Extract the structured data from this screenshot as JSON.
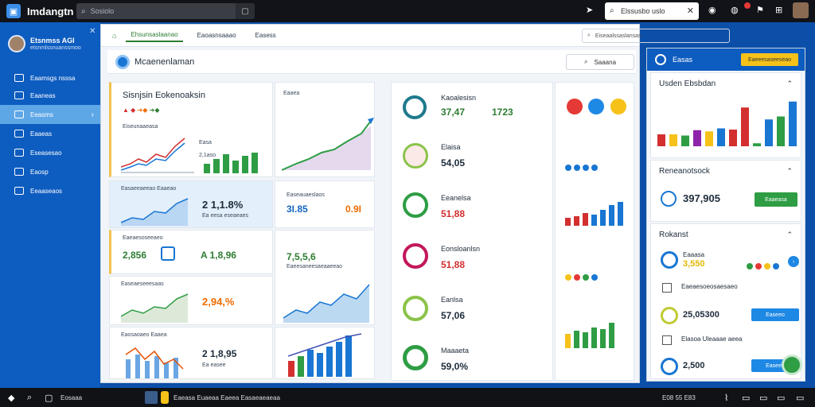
{
  "topbar": {
    "app_title": "Imdangtn",
    "search_text": "Sosiolo",
    "search_box_text": "Elssusbo uslo",
    "icons": [
      "app-logo-icon",
      "search-icon",
      "filter-icon",
      "send-icon",
      "search-icon",
      "close-icon",
      "settings-icon",
      "bell-icon",
      "flag-icon",
      "grid-icon"
    ]
  },
  "sidebar": {
    "profile_name": "Etsnmss AGI",
    "profile_sub": "etsnmlssnuanssmoo",
    "items": [
      {
        "label": "Eaamsgs nsssa"
      },
      {
        "label": "Eaaneas"
      },
      {
        "label": "Eeasms"
      },
      {
        "label": "Eaaeas"
      },
      {
        "label": "Eseasesao"
      },
      {
        "label": "Eaosp"
      },
      {
        "label": "Eeaaseaos"
      }
    ]
  },
  "window": {
    "tabs": [
      "Ehsunsaslaanao",
      "Eaoasnsaaao",
      "Easess"
    ],
    "search_text": "Eiseaalssaslansas",
    "header_title": "Mcaenenlaman",
    "header_button": "Saaana"
  },
  "cards": {
    "c1_title": "Sisnjsin Eokenoaksin",
    "c1_sub": "Eiseunaaeasa",
    "c1_chart_label": "Eaaeeaeeoao",
    "c1_values": [
      "Easa",
      "2,1aso",
      "Eaasio"
    ],
    "c2_label": "Eaaea",
    "c3_label": "Easaeeaeeao Eaaeao",
    "c3_value": "2 1,1.8%",
    "c3_sub": "Ea eesa eseaeaes",
    "c4_label": "Easeauaeslaos",
    "c4_value": "3I.85",
    "c4_value2": "0.9I",
    "c5_label": "Eaeaesoseeaeo",
    "c5_value": "2,856",
    "c5_value2": "A 1,8,96",
    "c6_value": "7,5,5,6",
    "c6_label": "Eaeesaneesaeaaeeao",
    "c7_label": "Easeaeseeesaas",
    "c7_value": "2,94,%",
    "c8_label": "Eaosaoaeo Eaaea",
    "c8_value": "2 1,8,95",
    "c8_sub": "Ea easee"
  },
  "list": [
    {
      "title": "Kaoalesisn",
      "value": "37,47",
      "value_color": "#2e7d32"
    },
    {
      "title": "Elaisa",
      "value": "54,05",
      "value_color": "#1d2b3a"
    },
    {
      "title": "Eeanelsa",
      "value": "51,88",
      "value_color": "#d32f2f"
    },
    {
      "title": "Eonsloanlsn",
      "value": "51,88",
      "value_color": "#d32f2f"
    },
    {
      "title": "Eanlsa",
      "value": "57,06",
      "value_color": "#1d2b3a"
    },
    {
      "title": "Maaaeta",
      "value": "59,0%",
      "value_color": "#1d2b3a"
    }
  ],
  "list_top_right_value": "1723",
  "right_panel": {
    "header_title": "Easas",
    "header_button": "Eaeeesaseeseao",
    "sec1_title": "Usden Ebsbdan",
    "sec2_title": "Reneanotsock",
    "sec2_value": "397,905",
    "sec2_button": "Eaaeasa",
    "sec3_title": "Rokanst",
    "rows": [
      {
        "label": "Eaaasa",
        "value": "3,550",
        "value_color": "#e6b800"
      },
      {
        "label": "Eaeaesoeosaesaeo",
        "value": "",
        "value_color": "#1d2b3a"
      },
      {
        "label": "",
        "value": "25,05300",
        "value_color": "#1d2b3a"
      },
      {
        "label": "Elasoa Uleaaae aeea",
        "value": "",
        "value_color": "#1d2b3a"
      },
      {
        "label": "",
        "value": "2,500",
        "value_color": "#1d2b3a"
      }
    ],
    "btn_a": "Easeeo",
    "btn_b": "Easeeo"
  },
  "taskbar": {
    "app1": "Eosaaa",
    "window_title": "Eaeasa Euaeaa Eaeea Easaeaeaeaa",
    "clock": "E08 55 E83"
  },
  "colors": {
    "accent": "#0d5cc0",
    "green": "#2e7d32",
    "red": "#d32f2f",
    "blue": "#1976d2",
    "yellow": "#f6c21a"
  },
  "chart_data": [
    {
      "type": "bar",
      "categories": [
        "1",
        "2",
        "3",
        "4",
        "5",
        "6",
        "7",
        "8",
        "9",
        "10",
        "11",
        "12"
      ],
      "values": [
        20,
        20,
        18,
        27,
        25,
        30,
        28,
        65,
        5,
        45,
        50,
        75
      ]
    },
    {
      "type": "bar",
      "categories": [
        "1",
        "2",
        "3",
        "4",
        "5",
        "6",
        "7"
      ],
      "values": [
        18,
        24,
        20,
        30,
        22,
        35,
        40
      ]
    }
  ]
}
